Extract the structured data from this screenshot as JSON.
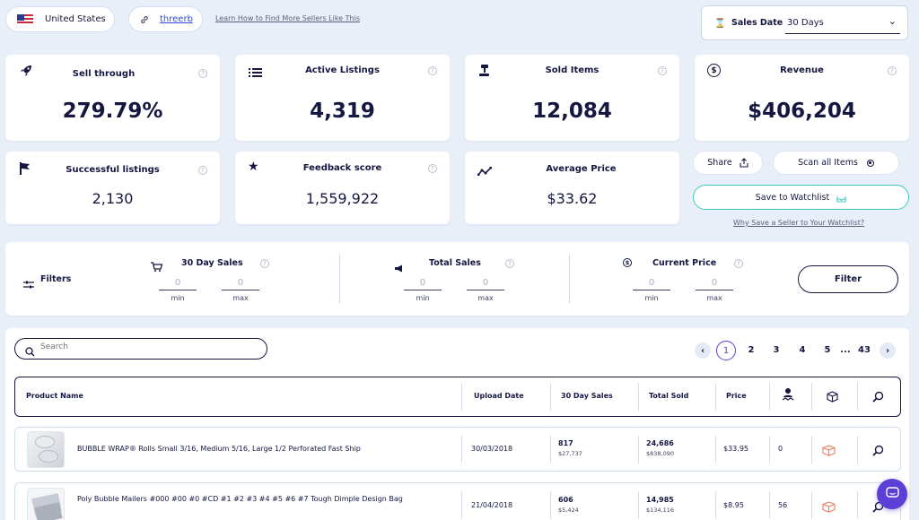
{
  "top": {
    "country": "United States",
    "seller": "threerb",
    "learn_link": "Learn How to Find More Sellers Like This",
    "sales_date_label": "Sales Date",
    "sales_date_value": "30 Days"
  },
  "stats": {
    "sell_through": {
      "label": "Sell through",
      "value": "279.79%"
    },
    "active_listings": {
      "label": "Active Listings",
      "value": "4,319"
    },
    "sold_items": {
      "label": "Sold Items",
      "value": "12,084"
    },
    "revenue": {
      "label": "Revenue",
      "value": "$406,204"
    },
    "successful_listings": {
      "label": "Successful listings",
      "value": "2,130"
    },
    "feedback_score": {
      "label": "Feedback score",
      "value": "1,559,922"
    },
    "average_price": {
      "label": "Average Price",
      "value": "$33.62"
    }
  },
  "actions": {
    "share": "Share",
    "scan": "Scan all Items",
    "watchlist": "Save to Watchlist",
    "why_link": "Why Save a Seller to Your Watchlist?"
  },
  "filters": {
    "label": "Filters",
    "groups": [
      {
        "label": "30 Day Sales",
        "min_placeholder": "0",
        "max_placeholder": "0"
      },
      {
        "label": "Total Sales",
        "min_placeholder": "0",
        "max_placeholder": "0"
      },
      {
        "label": "Current Price",
        "min_placeholder": "0",
        "max_placeholder": "0"
      }
    ],
    "min_label": "min",
    "max_label": "max",
    "button": "Filter"
  },
  "search": {
    "placeholder": "Search"
  },
  "pagination": {
    "pages": [
      "1",
      "2",
      "3",
      "4",
      "5",
      "...",
      "43"
    ],
    "current": "1"
  },
  "table": {
    "headers": {
      "product": "Product Name",
      "upload": "Upload Date",
      "sales30": "30 Day Sales",
      "total": "Total Sold",
      "price": "Price"
    },
    "rows": [
      {
        "name": "BUBBLE WRAP® Rolls Small 3/16, Medium 5/16, Large 1/2 Perforated Fast Ship",
        "upload": "30/03/2018",
        "sales30": "817",
        "sales30_rev": "$27,737",
        "total": "24,686",
        "total_rev": "$838,090",
        "price": "$33.95",
        "count": "0"
      },
      {
        "name": "Poly Bubble Mailers #000 #00 #0 #CD #1 #2 #3 #4 #5 #6 #7 Tough Dimple Design Bag",
        "upload": "21/04/2018",
        "sales30": "606",
        "sales30_rev": "$5,424",
        "total": "14,985",
        "total_rev": "$134,116",
        "price": "$8.95",
        "count": "56"
      }
    ]
  },
  "colors": {
    "accent": "#5b3fd6",
    "navy": "#151741",
    "teal": "#3ec9c0",
    "orange": "#f07c5c"
  }
}
